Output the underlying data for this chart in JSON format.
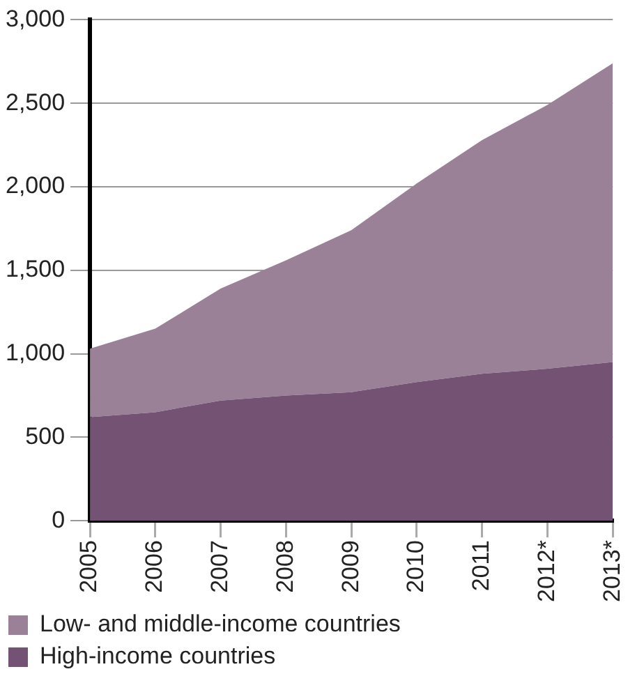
{
  "chart_data": {
    "type": "area",
    "stacked": true,
    "categories": [
      "2005",
      "2006",
      "2007",
      "2008",
      "2009",
      "2010",
      "2011",
      "2012*",
      "2013*"
    ],
    "series": [
      {
        "name": "High-income countries",
        "color": "#745274",
        "values": [
          620,
          650,
          720,
          750,
          770,
          830,
          880,
          910,
          950
        ]
      },
      {
        "name": "Low- and middle-income countries",
        "color": "#9a8198",
        "values": [
          410,
          500,
          670,
          810,
          970,
          1190,
          1400,
          1580,
          1790
        ]
      }
    ],
    "ylim": [
      0,
      3000
    ],
    "yticks": [
      0,
      500,
      {
        "value": 1000,
        "label": "1,000"
      },
      {
        "value": 1500,
        "label": "1,500"
      },
      {
        "value": 2000,
        "label": "2,000"
      },
      {
        "value": 2500,
        "label": "2,500"
      },
      {
        "value": 3000,
        "label": "3,000"
      }
    ],
    "grid": "y",
    "legend": "bottom"
  }
}
